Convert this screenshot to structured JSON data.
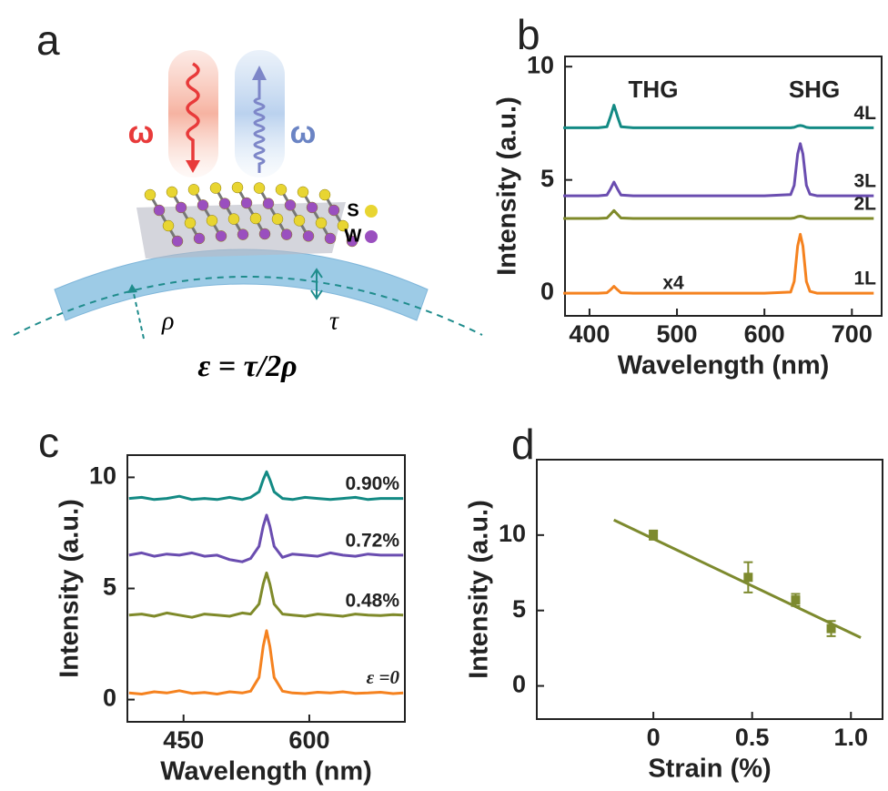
{
  "diagram": {
    "panel_label": "a",
    "omega_in": "ω",
    "omega_out": "ω",
    "atom_s": "S",
    "atom_w": "W",
    "rho": "ρ",
    "tau": "τ",
    "formula": "ε = τ/2ρ"
  },
  "chart_data": [
    {
      "type": "line",
      "panel_label": "b",
      "xlabel": "Wavelength (nm)",
      "ylabel": "Intensity (a.u.)",
      "annotations": [
        "THG",
        "SHG",
        "x4"
      ],
      "x": [
        370,
        410,
        420,
        424,
        428,
        432,
        436,
        450,
        600,
        630,
        634,
        638,
        641,
        644,
        648,
        652,
        660,
        700,
        725
      ],
      "series": [
        {
          "name": "1L",
          "color": "#f5821f",
          "values": [
            0,
            0,
            0.02,
            0.15,
            0.3,
            0.15,
            0.02,
            0,
            0,
            0.05,
            0.52,
            2.08,
            2.6,
            2.08,
            0.52,
            0.08,
            0,
            0,
            0
          ]
        },
        {
          "name": "2L",
          "color": "#7f8a2a",
          "values": [
            3.3,
            3.3,
            3.32,
            3.48,
            3.65,
            3.48,
            3.32,
            3.3,
            3.3,
            3.3,
            3.32,
            3.38,
            3.4,
            3.38,
            3.32,
            3.3,
            3.3,
            3.3,
            3.3
          ]
        },
        {
          "name": "3L",
          "color": "#6a4db0",
          "values": [
            4.3,
            4.3,
            4.33,
            4.6,
            4.9,
            4.6,
            4.33,
            4.3,
            4.3,
            4.35,
            4.76,
            6.14,
            6.6,
            6.14,
            4.76,
            4.37,
            4.3,
            4.3,
            4.3
          ]
        },
        {
          "name": "4L",
          "color": "#138a84",
          "values": [
            7.3,
            7.3,
            7.35,
            7.8,
            8.3,
            7.8,
            7.35,
            7.3,
            7.3,
            7.3,
            7.32,
            7.38,
            7.4,
            7.38,
            7.32,
            7.3,
            7.3,
            7.3,
            7.3
          ]
        }
      ],
      "xlim": [
        372,
        734
      ],
      "xticks": [
        400,
        500,
        600,
        700
      ],
      "ylim": [
        -1,
        10.45
      ],
      "yticks": [
        0,
        5,
        10
      ]
    },
    {
      "type": "line",
      "panel_label": "c",
      "xlabel": "Wavelength (nm)",
      "ylabel": "Intensity (a.u.)",
      "annotations": [],
      "x": [
        385,
        400,
        415,
        430,
        445,
        460,
        475,
        490,
        505,
        520,
        530,
        540,
        545,
        549,
        553,
        558,
        568,
        580,
        595,
        610,
        625,
        640,
        655,
        670,
        685,
        700,
        712
      ],
      "series": [
        {
          "name": "ε =0",
          "color": "#f5821f",
          "values": [
            0.3,
            0.25,
            0.35,
            0.3,
            0.4,
            0.28,
            0.32,
            0.25,
            0.35,
            0.3,
            0.38,
            1.0,
            2.4,
            3.1,
            2.4,
            1.0,
            0.38,
            0.3,
            0.27,
            0.33,
            0.3,
            0.35,
            0.28,
            0.3,
            0.33,
            0.27,
            0.3
          ]
        },
        {
          "name": "0.48%",
          "color": "#7f8a2a",
          "values": [
            3.8,
            3.85,
            3.75,
            3.9,
            3.8,
            3.7,
            3.85,
            3.8,
            3.75,
            3.9,
            3.85,
            4.3,
            5.2,
            5.7,
            5.2,
            4.3,
            3.85,
            3.8,
            3.75,
            3.85,
            3.8,
            3.75,
            3.85,
            3.8,
            3.78,
            3.82,
            3.8
          ]
        },
        {
          "name": "0.72%",
          "color": "#6a4db0",
          "values": [
            6.5,
            6.6,
            6.45,
            6.55,
            6.5,
            6.6,
            6.45,
            6.5,
            6.3,
            6.2,
            6.35,
            6.9,
            7.8,
            8.3,
            7.8,
            6.9,
            6.4,
            6.55,
            6.5,
            6.45,
            6.6,
            6.5,
            6.45,
            6.55,
            6.5,
            6.5,
            6.5
          ]
        },
        {
          "name": "0.90%",
          "color": "#138a84",
          "values": [
            9.05,
            9.1,
            9.0,
            9.05,
            9.15,
            9.0,
            9.05,
            9.0,
            9.1,
            9.0,
            9.1,
            9.35,
            9.9,
            10.25,
            9.9,
            9.35,
            9.05,
            9.0,
            9.1,
            9.05,
            9.0,
            9.05,
            9.1,
            9.0,
            9.05,
            9.05,
            9.05
          ]
        }
      ],
      "xlim": [
        383,
        714
      ],
      "xticks": [
        450,
        600
      ],
      "ylim": [
        -1,
        11
      ],
      "yticks": [
        0,
        5,
        10
      ]
    },
    {
      "type": "scatter",
      "panel_label": "d",
      "xlabel": "Strain (%)",
      "ylabel": "Intensity (a.u.)",
      "annotations": [],
      "color": "#7d8a2e",
      "x": [
        0,
        0.48,
        0.72,
        0.9
      ],
      "values": [
        10,
        7.2,
        5.7,
        3.8
      ],
      "errors": [
        0.3,
        1.0,
        0.4,
        0.5
      ],
      "fit_x": [
        -0.2,
        1.05
      ],
      "fit_y": [
        11,
        3.2
      ],
      "xlim": [
        -0.59,
        1.16
      ],
      "xticks": [
        0,
        0.5,
        {
          "value": 1,
          "label": "1.0"
        }
      ],
      "ylim": [
        -2.2,
        15
      ],
      "yticks": [
        0,
        5,
        10
      ]
    }
  ]
}
